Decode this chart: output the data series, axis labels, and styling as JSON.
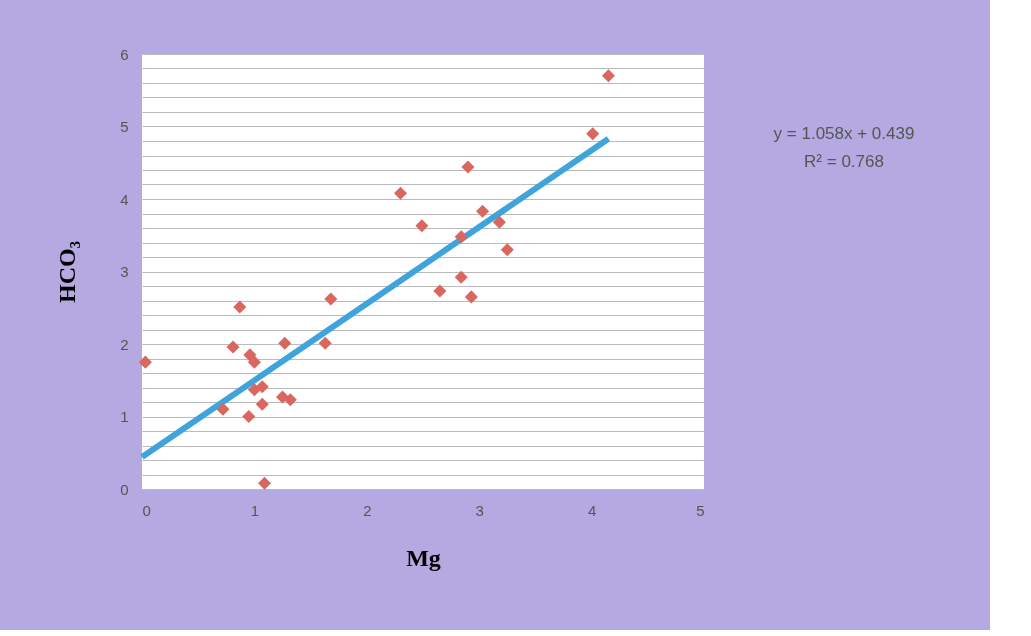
{
  "chart_data": {
    "type": "scatter",
    "xlabel": "Mg",
    "ylabel": "HCO₃",
    "series": [
      {
        "type": "scatter",
        "color": "#d9665f",
        "marker": "diamond",
        "x": [
          0.03,
          0.87,
          0.81,
          0.96,
          1.0,
          0.72,
          0.95,
          1.0,
          1.07,
          1.07,
          1.27,
          1.25,
          1.32,
          1.09,
          1.63,
          1.68,
          2.3,
          2.49,
          2.9,
          2.84,
          2.84,
          2.65,
          2.93,
          3.03,
          3.18,
          3.25,
          4.01,
          4.15
        ],
        "values": [
          1.75,
          2.51,
          1.96,
          1.85,
          1.75,
          1.1,
          1.0,
          1.37,
          1.41,
          1.17,
          2.01,
          1.27,
          1.23,
          0.08,
          2.01,
          2.62,
          4.08,
          3.63,
          4.44,
          3.48,
          2.92,
          2.73,
          2.65,
          3.83,
          3.68,
          3.3,
          4.9,
          5.7
        ]
      },
      {
        "type": "line",
        "color": "#3fa4dc",
        "marker": "none",
        "x": [
          0.0,
          4.15
        ],
        "values": [
          0.44,
          4.83
        ]
      }
    ],
    "xlim": [
      0,
      5
    ],
    "xticks": [
      0,
      1,
      2,
      3,
      4,
      5
    ],
    "ylim": [
      0,
      6
    ],
    "yticks": [
      0,
      {
        "value": 0.2,
        "label": null
      },
      {
        "value": 0.4,
        "label": null
      },
      {
        "value": 0.6,
        "label": null
      },
      {
        "value": 0.8,
        "label": null
      },
      1,
      {
        "value": 1.2,
        "label": null
      },
      {
        "value": 1.4,
        "label": null
      },
      {
        "value": 1.6,
        "label": null
      },
      {
        "value": 1.8,
        "label": null
      },
      2,
      {
        "value": 2.2,
        "label": null
      },
      {
        "value": 2.4,
        "label": null
      },
      {
        "value": 2.6,
        "label": null
      },
      {
        "value": 2.8,
        "label": null
      },
      3,
      {
        "value": 3.2,
        "label": null
      },
      {
        "value": 3.4,
        "label": null
      },
      {
        "value": 3.6,
        "label": null
      },
      {
        "value": 3.8,
        "label": null
      },
      4,
      {
        "value": 4.2,
        "label": null
      },
      {
        "value": 4.4,
        "label": null
      },
      {
        "value": 4.6,
        "label": null
      },
      {
        "value": 4.8,
        "label": null
      },
      5,
      {
        "value": 5.2,
        "label": null
      },
      {
        "value": 5.4,
        "label": null
      },
      {
        "value": 5.6,
        "label": null
      },
      {
        "value": 5.8,
        "label": null
      },
      6
    ],
    "grid": "y",
    "legend": false,
    "annotations": [
      "y = 1.058x + 0.439",
      "R² = 0.768"
    ]
  }
}
